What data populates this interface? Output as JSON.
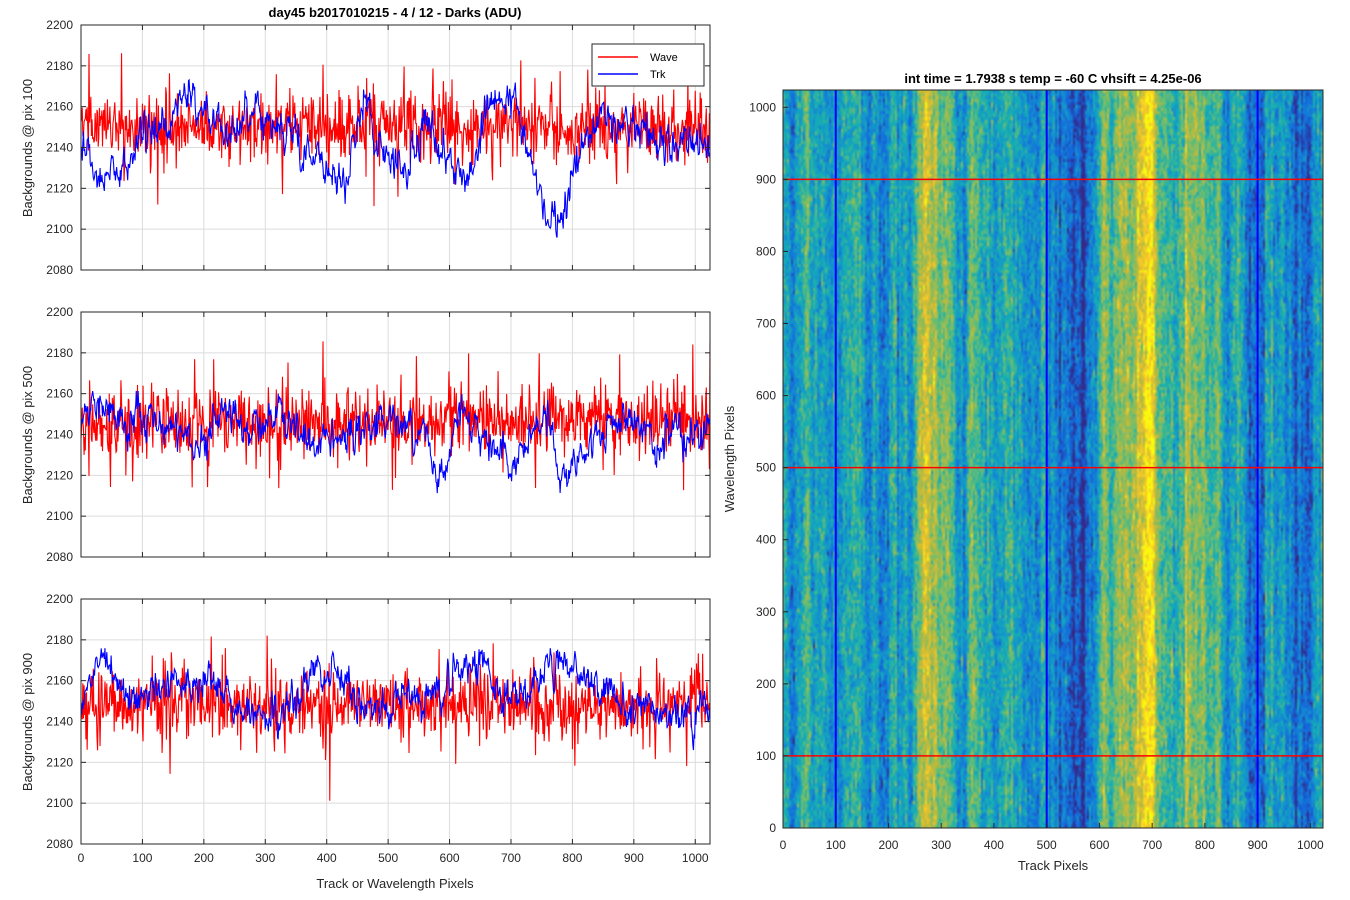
{
  "chart_data": [
    {
      "type": "line",
      "title": "day45 b2017010215 - 4 / 12 - Darks (ADU)",
      "ylabel": "Backgrounds @ pix 100",
      "xlabel": "",
      "xlim": [
        0,
        1024
      ],
      "ylim": [
        2080,
        2200
      ],
      "xticks": [
        0,
        100,
        200,
        300,
        400,
        500,
        600,
        700,
        800,
        900,
        1000
      ],
      "yticks": [
        2080,
        2100,
        2120,
        2140,
        2160,
        2180,
        2200
      ],
      "grid": true,
      "show_xtick_labels": false,
      "legend": {
        "location": "top-right",
        "entries": [
          "Wave",
          "Trk"
        ]
      },
      "series": [
        {
          "name": "Wave",
          "color": "#ff0000",
          "mean": 2150,
          "noise": 10,
          "trend": [
            [
              0,
              2150
            ],
            [
              1024,
              2150
            ]
          ]
        },
        {
          "name": "Trk",
          "color": "#0000ff",
          "mean": 2145,
          "noise": 4,
          "trend": [
            [
              0,
              2140
            ],
            [
              30,
              2124
            ],
            [
              70,
              2130
            ],
            [
              100,
              2145
            ],
            [
              140,
              2150
            ],
            [
              170,
              2170
            ],
            [
              200,
              2155
            ],
            [
              240,
              2150
            ],
            [
              280,
              2162
            ],
            [
              320,
              2150
            ],
            [
              360,
              2140
            ],
            [
              400,
              2130
            ],
            [
              430,
              2120
            ],
            [
              460,
              2160
            ],
            [
              490,
              2140
            ],
            [
              520,
              2125
            ],
            [
              560,
              2150
            ],
            [
              600,
              2135
            ],
            [
              630,
              2122
            ],
            [
              660,
              2160
            ],
            [
              700,
              2165
            ],
            [
              720,
              2150
            ],
            [
              750,
              2115
            ],
            [
              775,
              2095
            ],
            [
              800,
              2130
            ],
            [
              850,
              2160
            ],
            [
              900,
              2150
            ],
            [
              950,
              2140
            ],
            [
              1000,
              2145
            ],
            [
              1024,
              2135
            ]
          ]
        }
      ]
    },
    {
      "type": "line",
      "title": "",
      "ylabel": "Backgrounds @ pix 500",
      "xlabel": "",
      "xlim": [
        0,
        1024
      ],
      "ylim": [
        2080,
        2200
      ],
      "xticks": [
        0,
        100,
        200,
        300,
        400,
        500,
        600,
        700,
        800,
        900,
        1000
      ],
      "yticks": [
        2080,
        2100,
        2120,
        2140,
        2160,
        2180,
        2200
      ],
      "grid": true,
      "show_xtick_labels": false,
      "series": [
        {
          "name": "Wave",
          "color": "#ff0000",
          "mean": 2150,
          "noise": 10,
          "trend": [
            [
              0,
              2145
            ],
            [
              1024,
              2148
            ]
          ]
        },
        {
          "name": "Trk",
          "color": "#0000ff",
          "mean": 2145,
          "noise": 4,
          "trend": [
            [
              0,
              2148
            ],
            [
              30,
              2155
            ],
            [
              70,
              2140
            ],
            [
              100,
              2150
            ],
            [
              150,
              2145
            ],
            [
              200,
              2135
            ],
            [
              230,
              2155
            ],
            [
              270,
              2140
            ],
            [
              320,
              2150
            ],
            [
              370,
              2135
            ],
            [
              420,
              2140
            ],
            [
              460,
              2145
            ],
            [
              520,
              2150
            ],
            [
              560,
              2140
            ],
            [
              590,
              2120
            ],
            [
              620,
              2155
            ],
            [
              660,
              2140
            ],
            [
              700,
              2128
            ],
            [
              760,
              2150
            ],
            [
              780,
              2122
            ],
            [
              830,
              2135
            ],
            [
              880,
              2150
            ],
            [
              920,
              2140
            ],
            [
              980,
              2138
            ],
            [
              1024,
              2145
            ]
          ]
        }
      ]
    },
    {
      "type": "line",
      "title": "",
      "ylabel": "Backgrounds @ pix 900",
      "xlabel": "Track or Wavelength Pixels",
      "xlim": [
        0,
        1024
      ],
      "ylim": [
        2080,
        2200
      ],
      "xticks": [
        0,
        100,
        200,
        300,
        400,
        500,
        600,
        700,
        800,
        900,
        1000
      ],
      "yticks": [
        2080,
        2100,
        2120,
        2140,
        2160,
        2180,
        2200
      ],
      "grid": true,
      "show_xtick_labels": true,
      "series": [
        {
          "name": "Wave",
          "color": "#ff0000",
          "mean": 2150,
          "noise": 10,
          "trend": [
            [
              0,
              2148
            ],
            [
              1024,
              2148
            ]
          ]
        },
        {
          "name": "Trk",
          "color": "#0000ff",
          "mean": 2152,
          "noise": 4,
          "trend": [
            [
              0,
              2150
            ],
            [
              40,
              2170
            ],
            [
              80,
              2148
            ],
            [
              120,
              2155
            ],
            [
              200,
              2160
            ],
            [
              260,
              2148
            ],
            [
              320,
              2140
            ],
            [
              380,
              2165
            ],
            [
              420,
              2160
            ],
            [
              480,
              2145
            ],
            [
              520,
              2155
            ],
            [
              570,
              2148
            ],
            [
              620,
              2165
            ],
            [
              650,
              2170
            ],
            [
              700,
              2150
            ],
            [
              760,
              2165
            ],
            [
              790,
              2170
            ],
            [
              840,
              2155
            ],
            [
              880,
              2150
            ],
            [
              920,
              2145
            ],
            [
              970,
              2140
            ],
            [
              1024,
              2148
            ]
          ]
        }
      ]
    },
    {
      "type": "heatmap",
      "title": "int time = 1.7938 s    temp = -60 C    vhsift = 4.25e-06",
      "xlabel": "Track Pixels",
      "ylabel": "Wavelength Pixels",
      "xlim": [
        0,
        1024
      ],
      "ylim": [
        0,
        1024
      ],
      "xticks": [
        0,
        100,
        200,
        300,
        400,
        500,
        600,
        700,
        800,
        900,
        1000
      ],
      "yticks": [
        0,
        100,
        200,
        300,
        400,
        500,
        600,
        700,
        800,
        900,
        1000
      ],
      "grid": false,
      "colormap": "parula",
      "vertical_lines": {
        "color": "#0000ff",
        "x": [
          100,
          500,
          900
        ]
      },
      "horizontal_lines": {
        "color": "#ff0000",
        "y": [
          100,
          500,
          900
        ]
      }
    }
  ]
}
